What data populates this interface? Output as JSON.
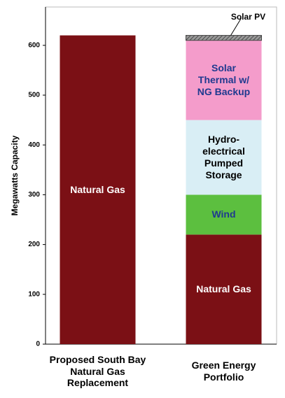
{
  "chart_data": {
    "type": "stacked_bar",
    "y_label": "Megawatts Capacity",
    "categories": [
      "Proposed South Bay Natural Gas Replacement",
      "Green Energy Portfolio"
    ],
    "series": [
      {
        "name": "Natural Gas",
        "color": "#7b1015",
        "label_color": "#ffffff",
        "values": [
          620,
          220
        ]
      },
      {
        "name": "Wind",
        "color": "#5cbf3f",
        "label_color": "#1f3a8f",
        "values": [
          null,
          80
        ]
      },
      {
        "name": "Hydro-electrical Pumped Storage",
        "color": "#d9eef5",
        "label_color": "#000000",
        "values": [
          null,
          150
        ]
      },
      {
        "name": "Solar Thermal w/ NG Backup",
        "color": "#f49ccb",
        "label_color": "#1f3a8f",
        "values": [
          null,
          160
        ]
      },
      {
        "name": "Solar PV",
        "color": "#6e6e6e",
        "label_color": "#000000",
        "values": [
          null,
          10
        ]
      }
    ],
    "ylim": [
      0,
      677
    ],
    "yticks": [
      0,
      100,
      200,
      300,
      400,
      500,
      600
    ],
    "grid": false
  }
}
